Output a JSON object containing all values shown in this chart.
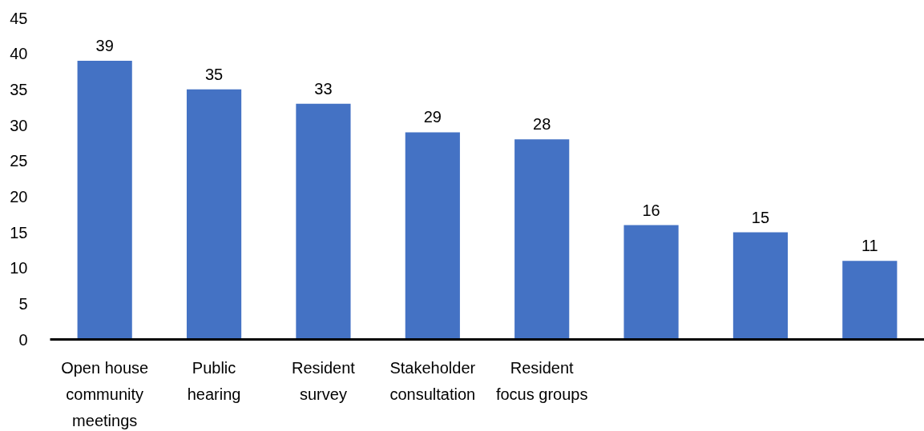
{
  "chart_data": {
    "type": "bar",
    "categories": [
      "Open house community meetings",
      "Public hearing",
      "Resident survey",
      "Stakeholder consultation",
      "Resident focus groups",
      null,
      null,
      null
    ],
    "values": [
      39,
      35,
      33,
      29,
      28,
      16,
      15,
      11
    ],
    "color": "#4472c4",
    "ylim": [
      0,
      45
    ],
    "yticks": [
      0,
      5,
      10,
      15,
      20,
      25,
      30,
      35,
      40,
      45
    ],
    "data_labels": true
  }
}
